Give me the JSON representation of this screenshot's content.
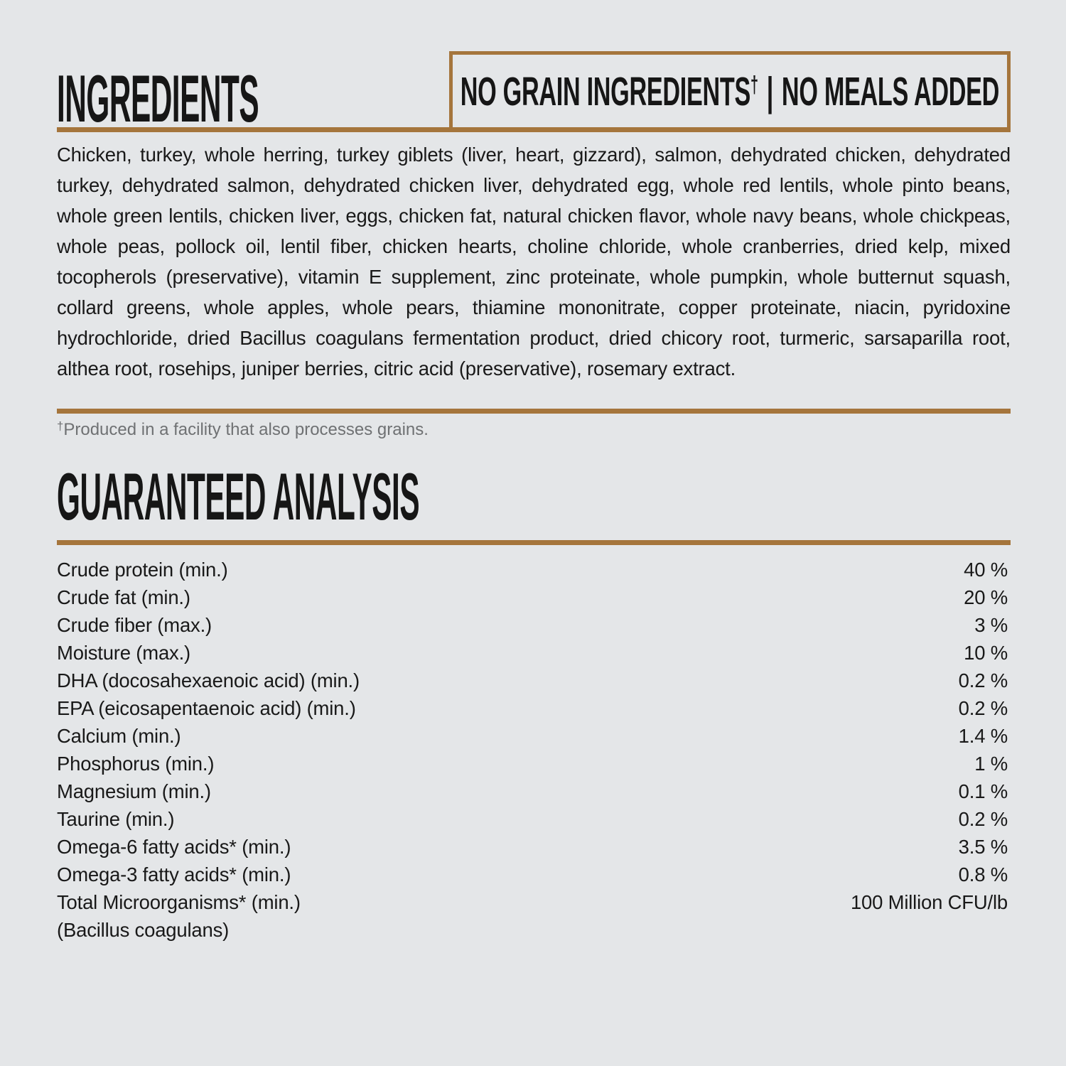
{
  "page": {
    "background_color": "#e4e6e8",
    "accent_color": "#a5753c",
    "text_color": "#1a1a1a",
    "muted_text_color": "#6f7173"
  },
  "ingredients_section": {
    "title": "INGREDIENTS",
    "badge": {
      "left_text": "NO GRAIN INGREDIENTS",
      "dagger": "†",
      "separator": "|",
      "right_text": "NO MEALS ADDED"
    },
    "ingredient_list": "Chicken, turkey, whole herring, turkey giblets (liver, heart, gizzard), salmon, dehydrated chicken, dehydrated turkey, dehydrated salmon, dehydrated chicken liver, dehydrated egg, whole red lentils, whole pinto beans, whole green lentils, chicken liver, eggs, chicken fat, natural chicken flavor, whole navy beans, whole chickpeas, whole peas, pollock oil, lentil fiber, chicken hearts, choline chloride, whole cranberries, dried kelp, mixed tocopherols (preservative), vitamin E supplement, zinc proteinate, whole pumpkin, whole butternut squash, collard greens, whole apples, whole pears, thiamine mononitrate, copper proteinate, niacin, pyridoxine hydrochloride, dried Bacillus coagulans fermentation product, dried chicory root, turmeric, sarsaparilla root, althea root, rosehips, juniper berries, citric acid (preservative), rosemary extract.",
    "footnote_marker": "†",
    "footnote_text": "Produced in a facility that also processes grains."
  },
  "guaranteed_analysis": {
    "title": "GUARANTEED ANALYSIS",
    "rows": [
      {
        "label": "Crude protein (min.)",
        "value": "40 %"
      },
      {
        "label": "Crude fat (min.)",
        "value": "20 %"
      },
      {
        "label": "Crude fiber (max.)",
        "value": "3 %"
      },
      {
        "label": "Moisture (max.)",
        "value": "10 %"
      },
      {
        "label": "DHA (docosahexaenoic acid) (min.)",
        "value": "0.2 %"
      },
      {
        "label": "EPA (eicosapentaenoic acid) (min.)",
        "value": "0.2 %"
      },
      {
        "label": "Calcium (min.)",
        "value": "1.4 %"
      },
      {
        "label": "Phosphorus (min.)",
        "value": "1 %"
      },
      {
        "label": "Magnesium (min.)",
        "value": "0.1 %"
      },
      {
        "label": "Taurine (min.)",
        "value": "0.2 %"
      },
      {
        "label": "Omega-6 fatty acids* (min.)",
        "value": "3.5 %"
      },
      {
        "label": "Omega-3 fatty acids* (min.)",
        "value": "0.8 %"
      },
      {
        "label": "Total Microorganisms* (min.)",
        "value": "100 Million CFU/lb"
      },
      {
        "label": "(Bacillus coagulans)",
        "value": ""
      }
    ]
  }
}
